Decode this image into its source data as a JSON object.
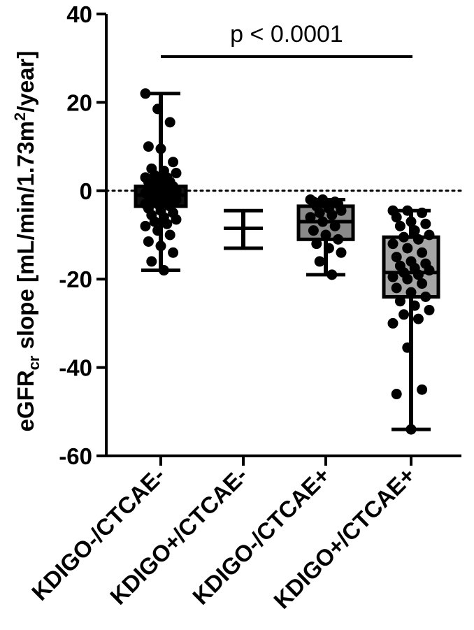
{
  "chart_data": {
    "type": "box",
    "ylabel": {
      "main": "eGFR",
      "subscript": "cr",
      "rest_before_sup": " slope [mL/min/1.73m",
      "superscript": "2",
      "rest_after_sup": "/year]"
    },
    "ylim": [
      -60,
      40
    ],
    "yticks": [
      40,
      20,
      0,
      -20,
      -40,
      -60
    ],
    "ytick_labels": [
      "40",
      "20",
      "0",
      "-20",
      "-40",
      "-60"
    ],
    "reference_line": 0,
    "categories": [
      "KDIGO-/CTCAE-",
      "KDIGO+/CTCAE-",
      "KDIGO-/CTCAE+",
      "KDIGO+/CTCAE+"
    ],
    "annotation": "p < 0.0001",
    "groups": [
      {
        "category": "KDIGO-/CTCAE-",
        "box_color": "#111111",
        "min": -18,
        "q1": -3.5,
        "median": -1,
        "q3": 1,
        "max": 22,
        "points": [
          22,
          18.5,
          15.5,
          10,
          9.5,
          6.5,
          5,
          4.5,
          4,
          3.5,
          3,
          3,
          2.5,
          2,
          2,
          1.5,
          1,
          1,
          0.5,
          0,
          0,
          -0.5,
          -0.5,
          -1,
          -1,
          -1,
          -1.5,
          -1.5,
          -2,
          -2,
          -2,
          -2.5,
          -2.5,
          -3,
          -3,
          -3.5,
          -4,
          -4.5,
          -5,
          -5.5,
          -6,
          -6.5,
          -7,
          -7.5,
          -8,
          -9,
          -10,
          -11.5,
          -12.5,
          -14,
          -16,
          -18
        ]
      },
      {
        "category": "KDIGO+/CTCAE-",
        "box_color": "#ffffff",
        "min": -13,
        "q1": -13,
        "median": -8.5,
        "q3": -4.5,
        "max": -4.5,
        "points": []
      },
      {
        "category": "KDIGO-/CTCAE+",
        "box_color": "#8a8a8a",
        "min": -19,
        "q1": -11,
        "median": -7,
        "q3": -3.5,
        "max": -2,
        "points": [
          -2,
          -2,
          -2.5,
          -2.5,
          -3,
          -3,
          -3.5,
          -4,
          -4.5,
          -5,
          -5.5,
          -6,
          -7,
          -8,
          -9,
          -10,
          -11,
          -12,
          -13,
          -14,
          -16,
          -19
        ]
      },
      {
        "category": "KDIGO+/CTCAE+",
        "box_color": "#a6a6a6",
        "min": -54,
        "q1": -24,
        "median": -18.5,
        "q3": -10.5,
        "max": -4.5,
        "points": [
          -4.5,
          -4.5,
          -5,
          -6,
          -7,
          -7.5,
          -8,
          -9,
          -10,
          -10.5,
          -11,
          -12,
          -13,
          -14,
          -15,
          -16,
          -16.5,
          -17,
          -17.5,
          -18,
          -18.5,
          -19,
          -19.5,
          -20,
          -21,
          -22,
          -23,
          -24,
          -25,
          -26,
          -27,
          -28,
          -29,
          -30,
          -35.5,
          -45,
          -46,
          -54
        ]
      }
    ]
  }
}
